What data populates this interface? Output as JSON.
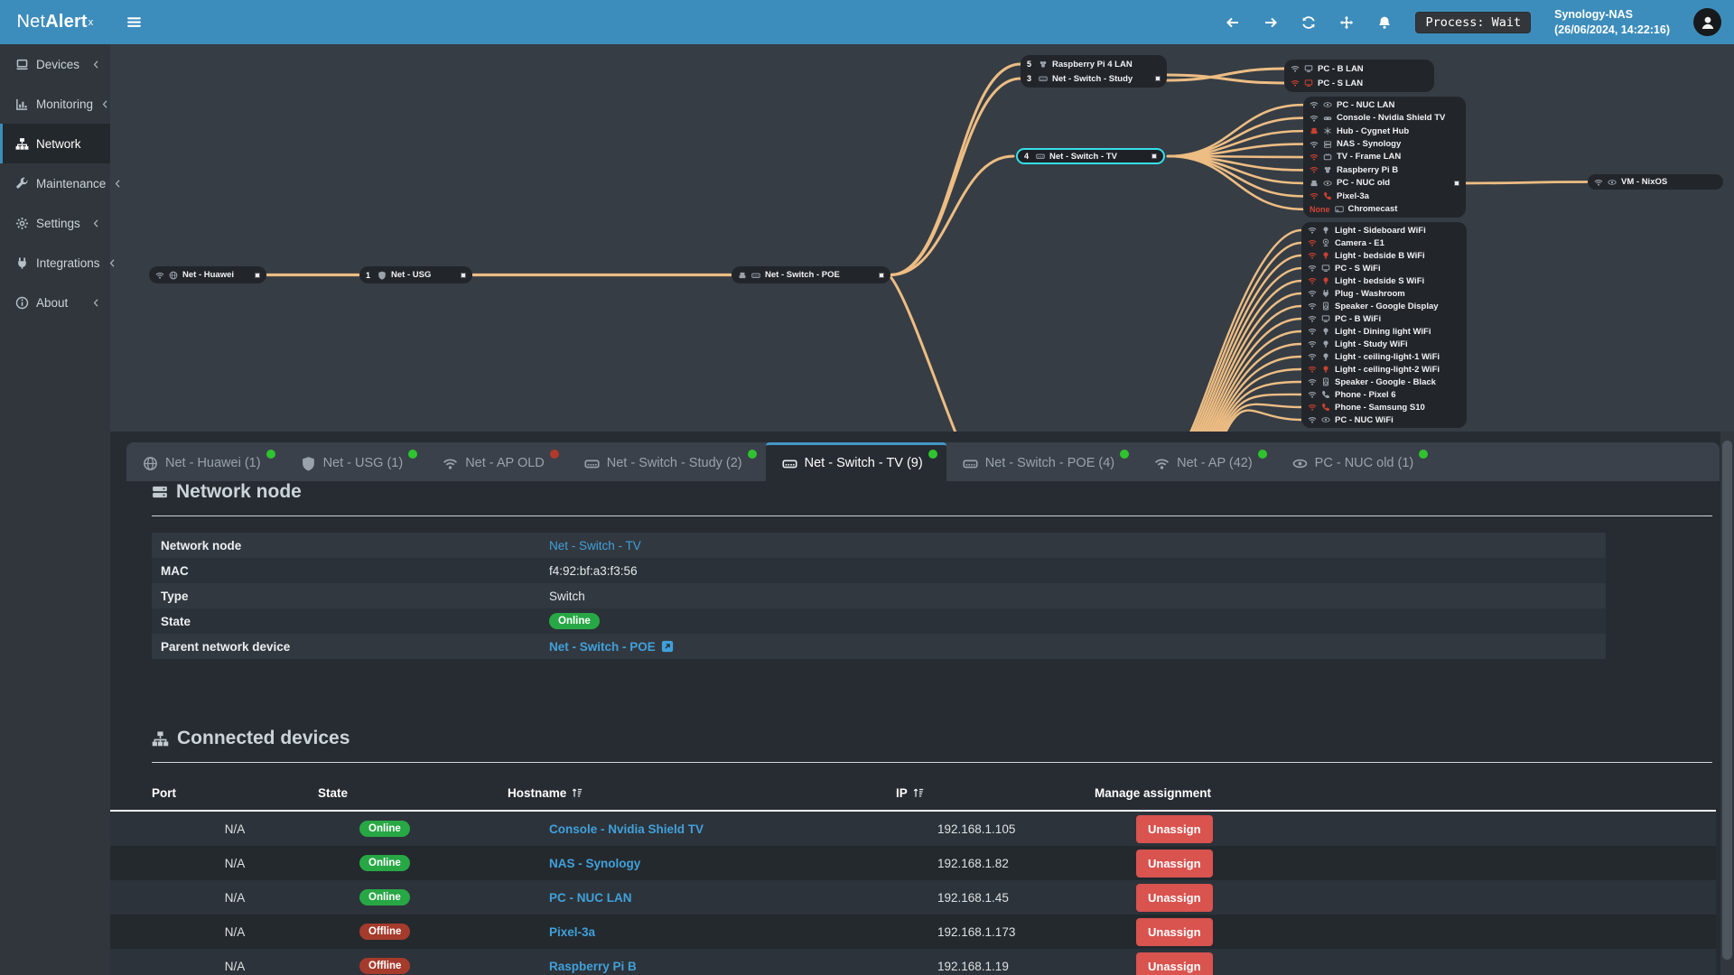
{
  "app": {
    "logo_prefix": "Net",
    "logo_bold": "Alert",
    "logo_sup": "x"
  },
  "navbar": {
    "process_label": "Process: Wait",
    "host": "Synology-NAS",
    "timestamp": "(26/06/2024, 14:22:16)",
    "icons": [
      "arrow-left-icon",
      "arrow-right-icon",
      "sync-icon",
      "move-icon",
      "bell-icon"
    ]
  },
  "sidebar": {
    "items": [
      {
        "label": "Devices",
        "icon": "laptop",
        "chevron": true,
        "active": false
      },
      {
        "label": "Monitoring",
        "icon": "chart",
        "chevron": true,
        "active": false
      },
      {
        "label": "Network",
        "icon": "sitemap",
        "chevron": false,
        "active": true
      },
      {
        "label": "Maintenance",
        "icon": "wrench",
        "chevron": true,
        "active": false
      },
      {
        "label": "Settings",
        "icon": "gear",
        "chevron": true,
        "active": false
      },
      {
        "label": "Integrations",
        "icon": "plug",
        "chevron": true,
        "active": false
      },
      {
        "label": "About",
        "icon": "info",
        "chevron": true,
        "active": false
      }
    ]
  },
  "tree": {
    "nodes": [
      {
        "id": "huawei",
        "type": "node",
        "icons": [
          "wifi",
          "globe"
        ],
        "label": "Net - Huawei",
        "handle": true
      },
      {
        "id": "usg",
        "type": "node",
        "port": "1",
        "icons": [
          "shield"
        ],
        "label": "Net - USG",
        "handle": true
      },
      {
        "id": "poe",
        "type": "node",
        "icons": [
          "ethernet",
          "switch"
        ],
        "label": "Net - Switch - POE",
        "handle": true
      },
      {
        "id": "topgroup",
        "type": "group",
        "rows": [
          {
            "port": "5",
            "icons": [
              "raspberry"
            ],
            "label": "Raspberry Pi 4 LAN"
          },
          {
            "port": "3",
            "icons": [
              "switch"
            ],
            "label": "Net - Switch - Study",
            "handle": true
          }
        ]
      },
      {
        "id": "pcgroup",
        "type": "group",
        "rows": [
          {
            "icons": [
              "wifi",
              "desktop"
            ],
            "label": "PC - B LAN"
          },
          {
            "icons": [
              "wifi:red",
              "desktop:red"
            ],
            "label": "PC - S LAN"
          }
        ]
      },
      {
        "id": "tv",
        "type": "node",
        "port": "4",
        "icons": [
          "switch"
        ],
        "label": "Net - Switch - TV",
        "selected": true,
        "handle": true
      },
      {
        "id": "tvkids",
        "type": "group",
        "rows": [
          {
            "icons": [
              "wifi",
              "nuc"
            ],
            "label": "PC - NUC LAN"
          },
          {
            "icons": [
              "wifi",
              "console"
            ],
            "label": "Console - Nvidia Shield TV"
          },
          {
            "icons": [
              "ethernet:red",
              "hub"
            ],
            "label": "Hub - Cygnet Hub"
          },
          {
            "icons": [
              "wifi",
              "nas"
            ],
            "label": "NAS - Synology"
          },
          {
            "icons": [
              "wifi:red",
              "tv"
            ],
            "label": "TV - Frame LAN"
          },
          {
            "icons": [
              "wifi:red",
              "raspberry"
            ],
            "label": "Raspberry Pi B"
          },
          {
            "icons": [
              "ethernet",
              "nuc"
            ],
            "label": "PC - NUC old",
            "handle": true
          },
          {
            "icons": [
              "wifi:red",
              "phone:red"
            ],
            "label": "Pixel-3a"
          },
          {
            "port": "None",
            "port_color": "red",
            "icons": [
              "cast"
            ],
            "label": "Chromecast"
          }
        ]
      },
      {
        "id": "vm",
        "type": "node",
        "icons": [
          "wifi",
          "nuc"
        ],
        "label": "VM - NixOS"
      },
      {
        "id": "apkids",
        "type": "group",
        "rows": [
          {
            "icons": [
              "wifi",
              "bulb"
            ],
            "label": "Light - Sideboard WiFi"
          },
          {
            "icons": [
              "wifi:red",
              "camera"
            ],
            "label": "Camera - E1"
          },
          {
            "icons": [
              "wifi:red",
              "bulb:red"
            ],
            "label": "Light - bedside B WiFi"
          },
          {
            "icons": [
              "wifi",
              "desktop"
            ],
            "label": "PC - S WiFi"
          },
          {
            "icons": [
              "wifi:red",
              "bulb:red"
            ],
            "label": "Light - bedside S WiFi"
          },
          {
            "icons": [
              "wifi",
              "plug"
            ],
            "label": "Plug - Washroom"
          },
          {
            "icons": [
              "wifi",
              "speaker"
            ],
            "label": "Speaker - Google Display"
          },
          {
            "icons": [
              "wifi",
              "desktop"
            ],
            "label": "PC - B WiFi"
          },
          {
            "icons": [
              "wifi",
              "bulb"
            ],
            "label": "Light - Dining light WiFi"
          },
          {
            "icons": [
              "wifi",
              "bulb"
            ],
            "label": "Light - Study WiFi"
          },
          {
            "icons": [
              "wifi",
              "bulb"
            ],
            "label": "Light - ceiling-light-1 WiFi"
          },
          {
            "icons": [
              "wifi:red",
              "bulb:red"
            ],
            "label": "Light - ceiling-light-2 WiFi"
          },
          {
            "icons": [
              "wifi",
              "speaker"
            ],
            "label": "Speaker - Google - Black"
          },
          {
            "icons": [
              "wifi",
              "phone"
            ],
            "label": "Phone - Pixel 6"
          },
          {
            "icons": [
              "wifi:red",
              "phone:red"
            ],
            "label": "Phone - Samsung S10"
          },
          {
            "icons": [
              "wifi",
              "nuc"
            ],
            "label": "PC - NUC WiFi"
          }
        ]
      }
    ]
  },
  "tabs": [
    {
      "label": "Net - Huawei (1)",
      "icon": "globe",
      "dot": "green",
      "active": false
    },
    {
      "label": "Net - USG (1)",
      "icon": "shield",
      "dot": "green",
      "active": false
    },
    {
      "label": "Net - AP OLD",
      "icon": "wifi",
      "dot": "red",
      "active": false
    },
    {
      "label": "Net - Switch - Study (2)",
      "icon": "switch",
      "dot": "green",
      "active": false
    },
    {
      "label": "Net - Switch - TV (9)",
      "icon": "switch",
      "dot": "green",
      "active": true
    },
    {
      "label": "Net - Switch - POE (4)",
      "icon": "switch",
      "dot": "green",
      "active": false
    },
    {
      "label": "Net - AP (42)",
      "icon": "wifi",
      "dot": "green",
      "active": false
    },
    {
      "label": "PC - NUC old (1)",
      "icon": "nuc",
      "dot": "green",
      "active": false
    }
  ],
  "sections": {
    "network_node": {
      "title": "Network node",
      "rows": [
        {
          "label": "Network node",
          "value": "Net - Switch - TV",
          "kind": "link"
        },
        {
          "label": "MAC",
          "value": "f4:92:bf:a3:f3:56",
          "kind": "text"
        },
        {
          "label": "Type",
          "value": "Switch",
          "kind": "text"
        },
        {
          "label": "State",
          "value": "Online",
          "kind": "badge"
        },
        {
          "label": "Parent network device",
          "value": "Net - Switch - POE",
          "kind": "link-ext"
        }
      ]
    },
    "connected": {
      "title": "Connected devices",
      "columns": [
        {
          "label": "Port",
          "sort": false
        },
        {
          "label": "State",
          "sort": false
        },
        {
          "label": "Hostname",
          "sort": true
        },
        {
          "label": "IP",
          "sort": true
        },
        {
          "label": "Manage assignment",
          "sort": false
        }
      ],
      "rows": [
        {
          "port": "N/A",
          "state": "Online",
          "hostname": "Console - Nvidia Shield TV",
          "ip": "192.168.1.105",
          "action": "Unassign"
        },
        {
          "port": "N/A",
          "state": "Online",
          "hostname": "NAS - Synology",
          "ip": "192.168.1.82",
          "action": "Unassign"
        },
        {
          "port": "N/A",
          "state": "Online",
          "hostname": "PC - NUC LAN",
          "ip": "192.168.1.45",
          "action": "Unassign"
        },
        {
          "port": "N/A",
          "state": "Offline",
          "hostname": "Pixel-3a",
          "ip": "192.168.1.173",
          "action": "Unassign"
        },
        {
          "port": "N/A",
          "state": "Offline",
          "hostname": "Raspberry Pi B",
          "ip": "192.168.1.19",
          "action": "Unassign"
        }
      ]
    }
  },
  "colors": {
    "accent_blue": "#3d8dbc",
    "link_blue": "#40a0da",
    "link_orange": "#edbd83",
    "select_cyan": "#36dfe9",
    "online_green": "#28a745",
    "offline_red": "#a53b2c",
    "danger_red": "#d9534f",
    "dot_green": "#2fc32f",
    "dot_red": "#b23a2b",
    "icon_gray": "#9aa3ab",
    "icon_red": "#c9402e"
  }
}
